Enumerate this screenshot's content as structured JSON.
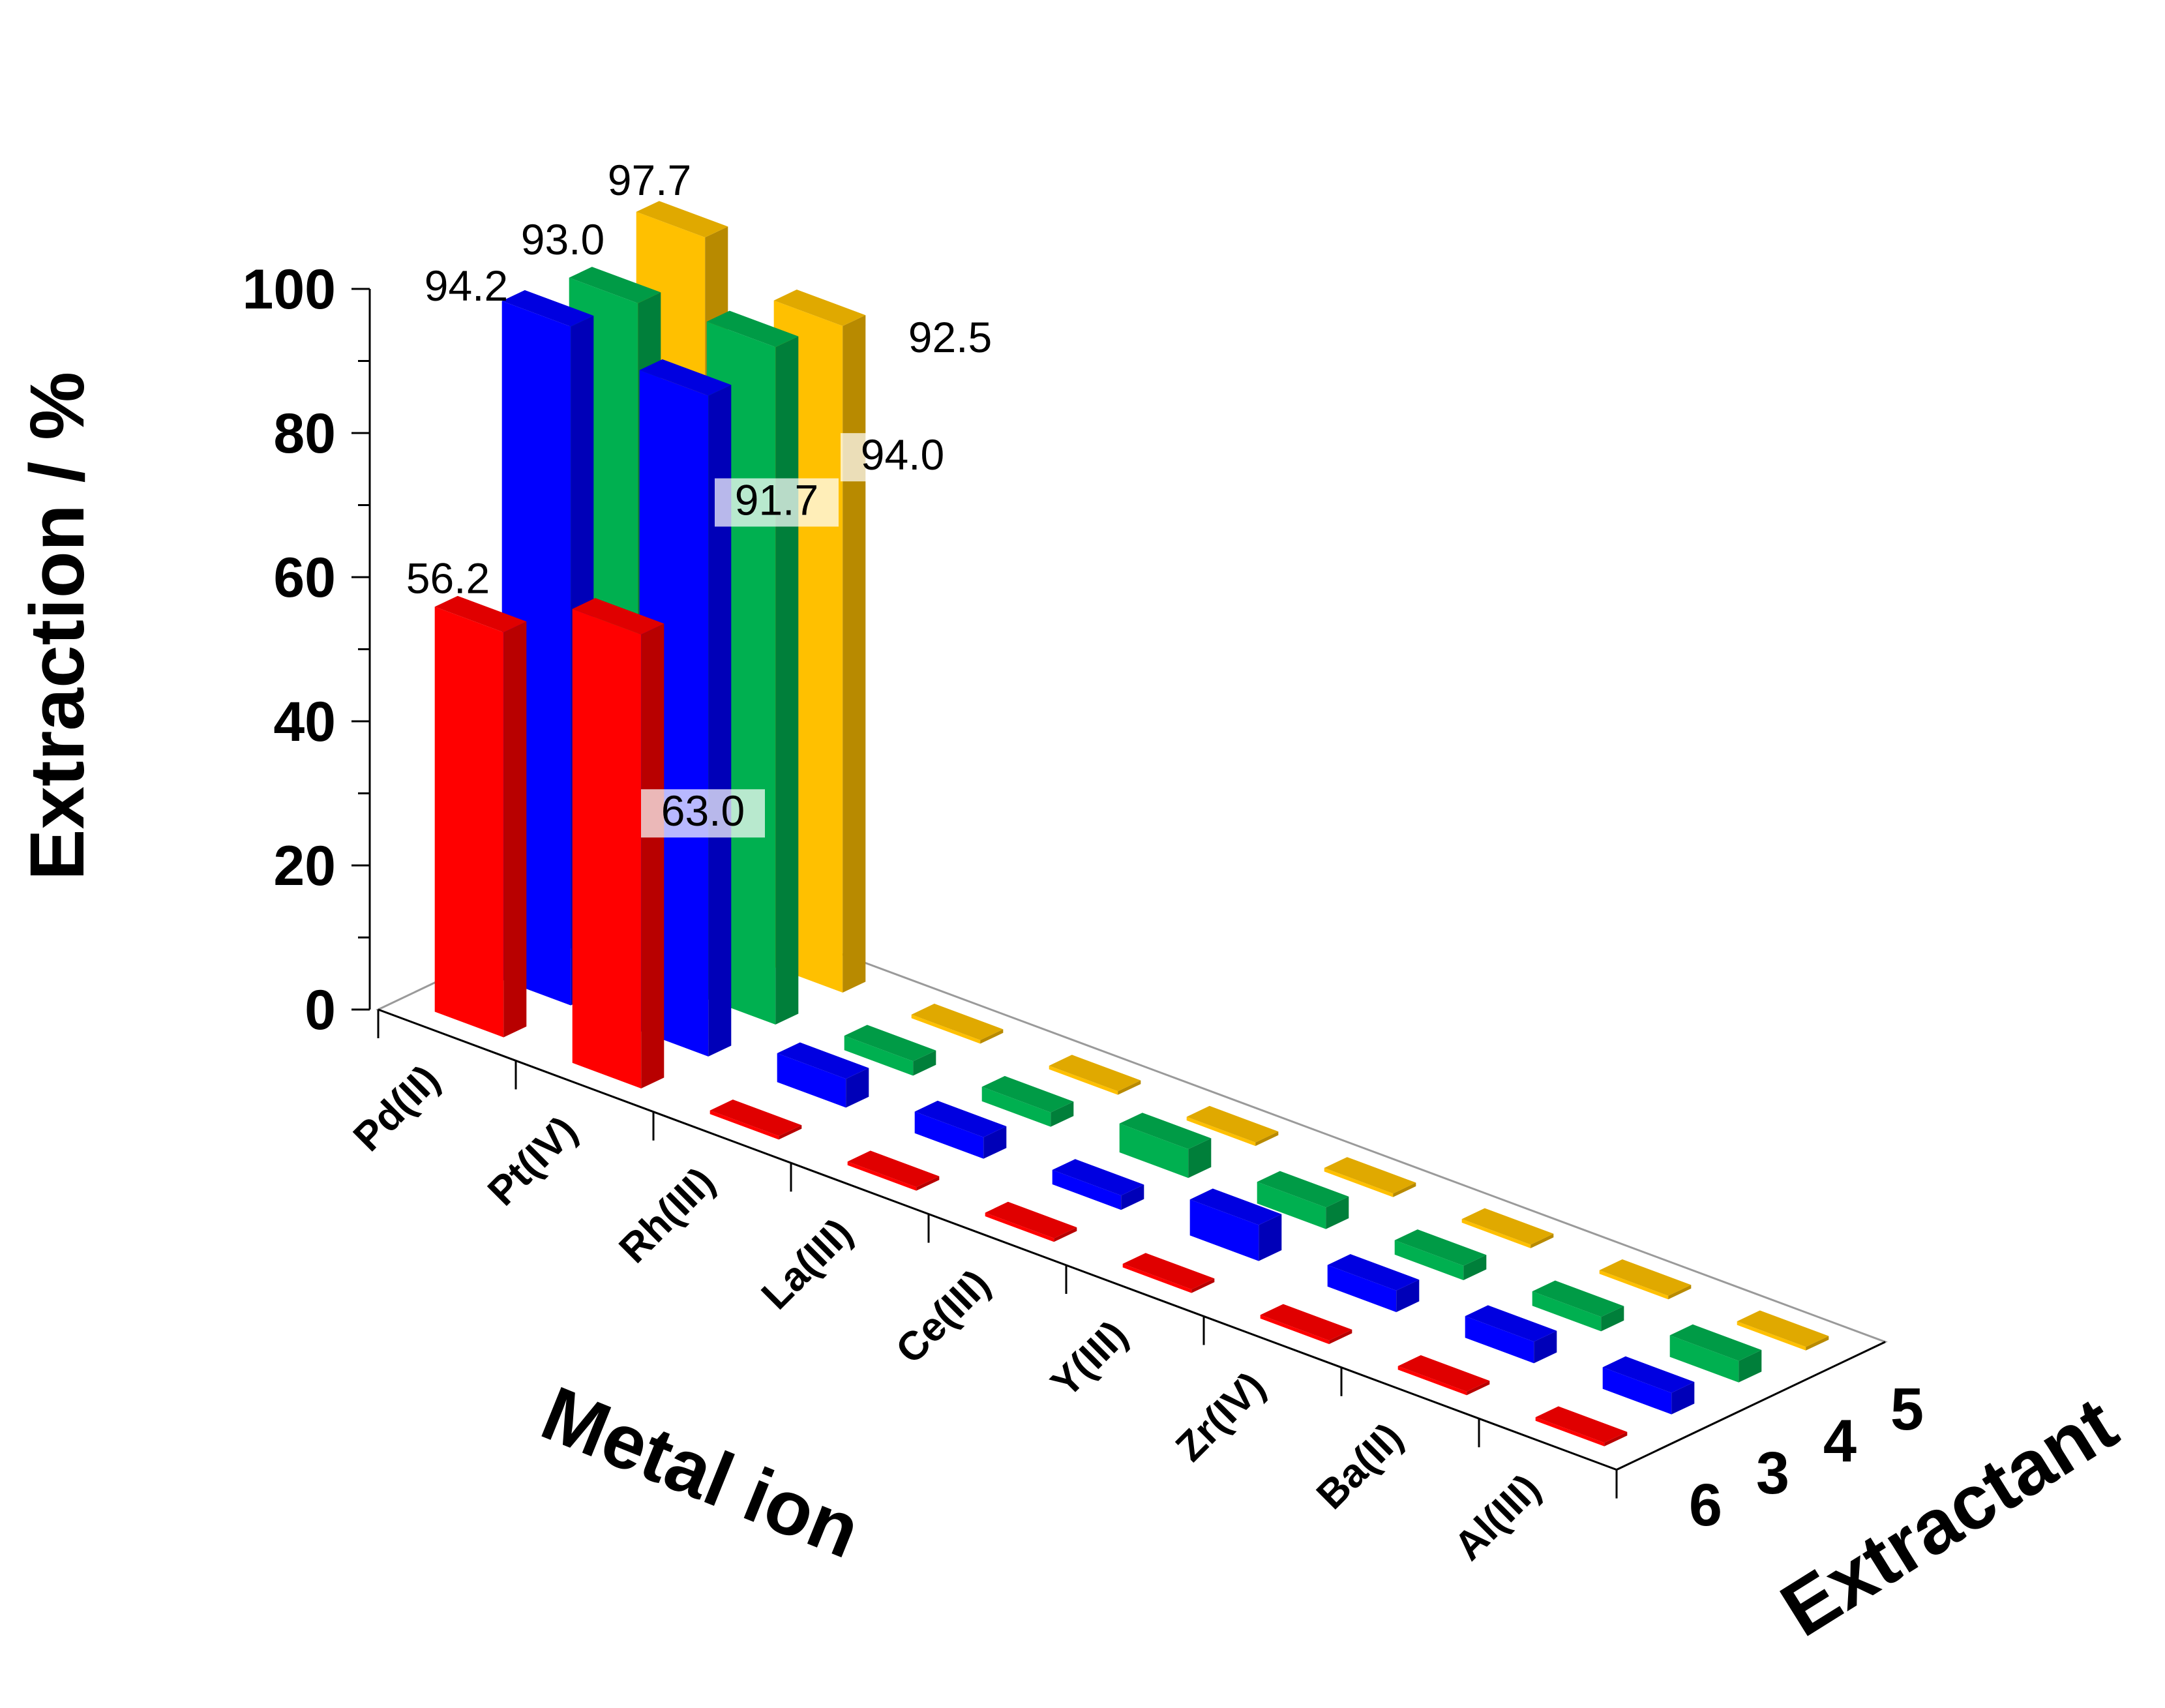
{
  "chart_data": {
    "type": "bar",
    "subtype": "3d-bar",
    "title": "",
    "ylabel": "Extraction / %",
    "xlabel": "Metal ion",
    "zlabel": "Extractant",
    "ylim": [
      0,
      100
    ],
    "yticks": [
      "0",
      "20",
      "40",
      "60",
      "80",
      "100"
    ],
    "categories": [
      "Pd(II)",
      "Pt(IV)",
      "Rh(III)",
      "La(III)",
      "Ce(III)",
      "Y(III)",
      "Zr(IV)",
      "Ba(II)",
      "Al(III)"
    ],
    "series": [
      {
        "name": "6",
        "color": "#ff0000",
        "values": [
          56.2,
          63.0,
          0.5,
          0.5,
          0.5,
          0.5,
          0.5,
          0.5,
          0.5
        ]
      },
      {
        "name": "3",
        "color": "#0000ff",
        "values": [
          94.2,
          91.7,
          4,
          3,
          2,
          5,
          3,
          3,
          3
        ]
      },
      {
        "name": "4",
        "color": "#00b050",
        "values": [
          93.0,
          94.0,
          2,
          2,
          4,
          3,
          2,
          2,
          3
        ]
      },
      {
        "name": "5",
        "color": "#ffc000",
        "values": [
          97.7,
          92.5,
          0.5,
          0.5,
          0.5,
          0.5,
          0.5,
          0.5,
          0.5
        ]
      }
    ],
    "data_labels": [
      {
        "series": "6",
        "category": "Pd(II)",
        "text": "56.2"
      },
      {
        "series": "6",
        "category": "Pt(IV)",
        "text": "63.0"
      },
      {
        "series": "3",
        "category": "Pd(II)",
        "text": "94.2"
      },
      {
        "series": "3",
        "category": "Pt(IV)",
        "text": "91.7"
      },
      {
        "series": "4",
        "category": "Pd(II)",
        "text": "93.0"
      },
      {
        "series": "4",
        "category": "Pt(IV)",
        "text": "94.0"
      },
      {
        "series": "5",
        "category": "Pd(II)",
        "text": "97.7"
      },
      {
        "series": "5",
        "category": "Pt(IV)",
        "text": "92.5"
      }
    ]
  }
}
